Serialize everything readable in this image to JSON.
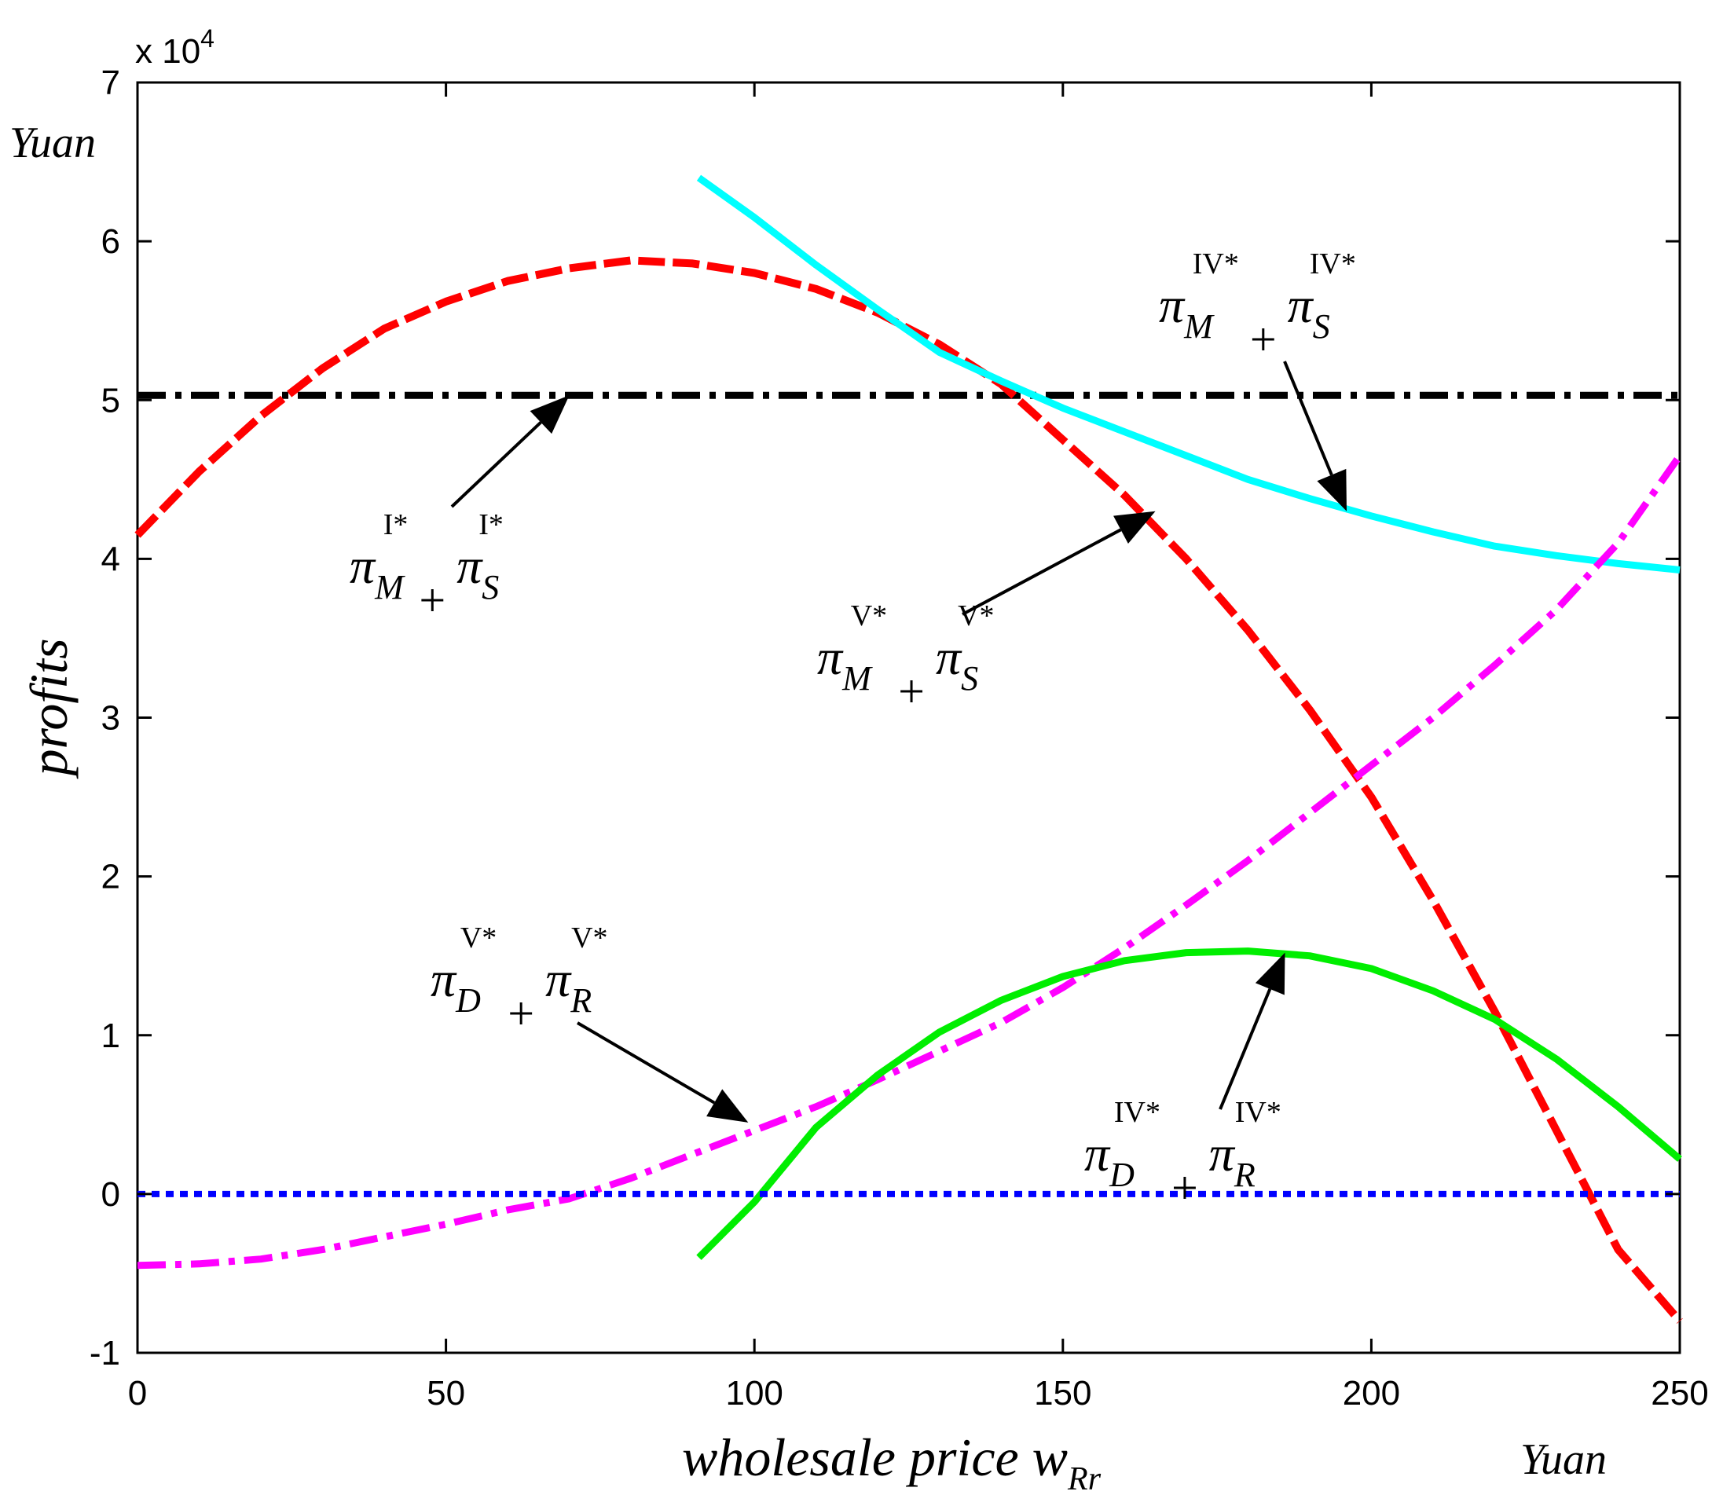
{
  "chart_data": {
    "type": "line",
    "title": "",
    "xlabel": "wholesale price w",
    "xlabel_sub": "Rr",
    "ylabel": "profits",
    "x_unit": "Yuan",
    "y_unit": "Yuan",
    "y_scale_text": "x 10",
    "y_scale_exp": "4",
    "xlim": [
      0,
      250
    ],
    "ylim": [
      -1,
      7
    ],
    "x_ticks": [
      "0",
      "50",
      "100",
      "150",
      "200",
      "250"
    ],
    "y_ticks": [
      "-1",
      "0",
      "1",
      "2",
      "3",
      "4",
      "5",
      "6",
      "7"
    ],
    "grid": false,
    "series": [
      {
        "name": "πM I* + πS I*",
        "color": "#000000",
        "style": "dashdot",
        "x": [
          0,
          250
        ],
        "y": [
          5.03,
          5.03
        ]
      },
      {
        "name": "πM V* + πS V*",
        "color": "#ff0000",
        "style": "dashed",
        "x": [
          0,
          10,
          20,
          30,
          40,
          50,
          60,
          70,
          80,
          90,
          100,
          110,
          120,
          130,
          140,
          150,
          160,
          170,
          180,
          190,
          200,
          210,
          220,
          230,
          240,
          250
        ],
        "y": [
          4.15,
          4.55,
          4.9,
          5.2,
          5.45,
          5.62,
          5.75,
          5.83,
          5.88,
          5.86,
          5.8,
          5.7,
          5.55,
          5.35,
          5.1,
          4.75,
          4.4,
          4.0,
          3.55,
          3.05,
          2.5,
          1.85,
          1.15,
          0.4,
          -0.35,
          -0.8
        ]
      },
      {
        "name": "πM IV* + πS IV*",
        "color": "#00ffff",
        "style": "solid",
        "x": [
          91,
          100,
          110,
          120,
          130,
          140,
          150,
          160,
          170,
          180,
          190,
          200,
          210,
          220,
          230,
          240,
          250
        ],
        "y": [
          6.4,
          6.15,
          5.85,
          5.57,
          5.3,
          5.12,
          4.95,
          4.8,
          4.65,
          4.5,
          4.38,
          4.27,
          4.17,
          4.08,
          4.02,
          3.97,
          3.93
        ]
      },
      {
        "name": "πD V* + πR V*",
        "color": "#ff00ff",
        "style": "dashdot",
        "x": [
          0,
          10,
          20,
          30,
          40,
          50,
          60,
          70,
          80,
          90,
          100,
          110,
          120,
          130,
          140,
          150,
          160,
          170,
          180,
          190,
          200,
          210,
          220,
          230,
          240,
          250
        ],
        "y": [
          -0.45,
          -0.44,
          -0.41,
          -0.35,
          -0.27,
          -0.19,
          -0.1,
          -0.03,
          0.1,
          0.25,
          0.4,
          0.55,
          0.72,
          0.9,
          1.08,
          1.3,
          1.55,
          1.82,
          2.1,
          2.4,
          2.7,
          3.0,
          3.33,
          3.68,
          4.1,
          4.65
        ]
      },
      {
        "name": "πD IV* + πR IV*",
        "color": "#00ee00",
        "style": "solid",
        "x": [
          91,
          100,
          110,
          120,
          130,
          140,
          150,
          160,
          170,
          180,
          190,
          200,
          210,
          220,
          230,
          240,
          250
        ],
        "y": [
          -0.4,
          -0.05,
          0.42,
          0.75,
          1.02,
          1.22,
          1.37,
          1.47,
          1.52,
          1.53,
          1.5,
          1.42,
          1.28,
          1.1,
          0.85,
          0.55,
          0.22
        ]
      },
      {
        "name": "zero",
        "color": "#0000ff",
        "style": "dotted",
        "x": [
          0,
          250
        ],
        "y": [
          0,
          0
        ]
      }
    ],
    "annotations": [
      {
        "id": "ann-1",
        "main": "π",
        "sub1": "M",
        "sup1": "I*",
        "plus": "+",
        "main2": "π",
        "sub2": "S",
        "sup2": "I*",
        "point": [
          70,
          5.03
        ]
      },
      {
        "id": "ann-2",
        "main": "π",
        "sub1": "M",
        "sup1": "V*",
        "plus": "+",
        "main2": "π",
        "sub2": "S",
        "sup2": "V*",
        "point": [
          165,
          4.3
        ]
      },
      {
        "id": "ann-3",
        "main": "π",
        "sub1": "M",
        "sup1": "IV*",
        "plus": "+",
        "main2": "π",
        "sub2": "S",
        "sup2": "IV*",
        "point": [
          196,
          4.3
        ]
      },
      {
        "id": "ann-4",
        "main": "π",
        "sub1": "D",
        "sup1": "V*",
        "plus": "+",
        "main2": "π",
        "sub2": "R",
        "sup2": "V*",
        "point": [
          99,
          0.45
        ]
      },
      {
        "id": "ann-5",
        "main": "π",
        "sub1": "D",
        "sup1": "IV*",
        "plus": "+",
        "main2": "π",
        "sub2": "R",
        "sup2": "IV*",
        "point": [
          186,
          1.52
        ]
      }
    ]
  }
}
